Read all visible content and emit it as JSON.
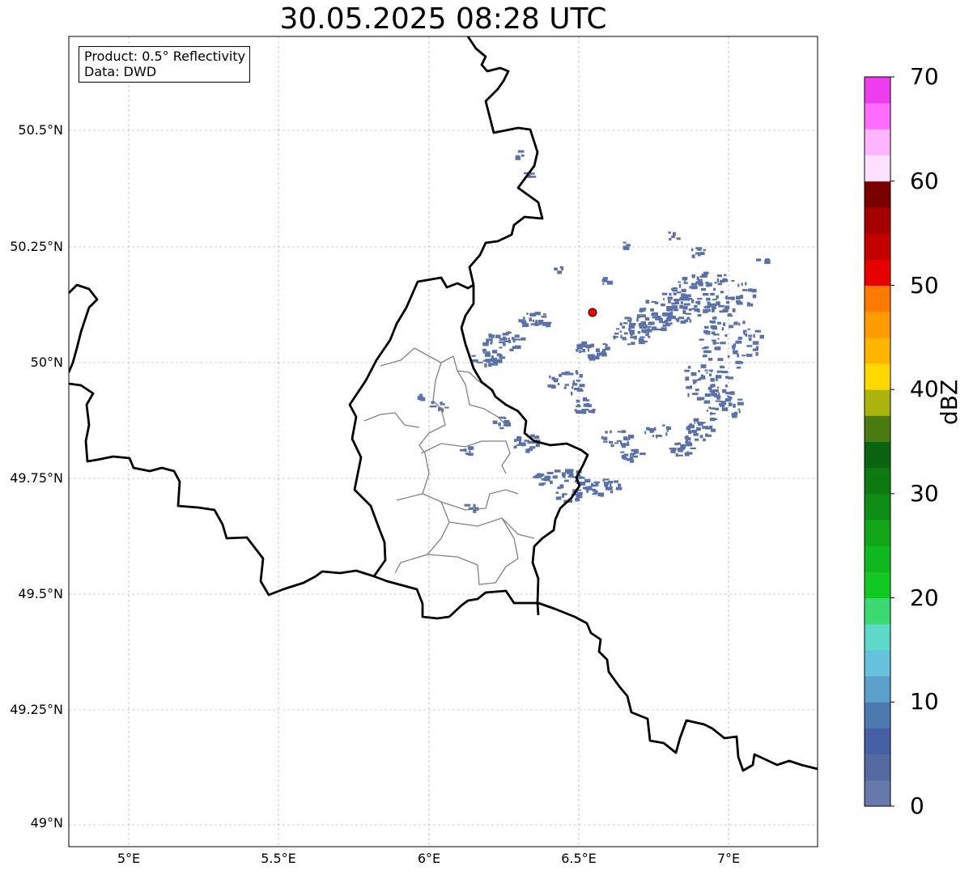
{
  "title": "30.05.2025 08:28 UTC",
  "infobox": {
    "product": "Product: 0.5° Reflectivity",
    "data": "Data: DWD"
  },
  "map": {
    "lon_range": [
      4.8,
      7.3
    ],
    "lat_range": [
      48.95,
      50.7
    ],
    "lat_ticks": [
      "50.5°N",
      "50.25°N",
      "50°N",
      "49.75°N",
      "49.5°N",
      "49.25°N",
      "49°N"
    ],
    "lon_ticks": [
      "5°E",
      "5.5°E",
      "6°E",
      "6.5°E",
      "7°E"
    ],
    "grid": true,
    "radar_site": {
      "lon": 6.55,
      "lat": 50.11,
      "color": "#ff0000"
    },
    "echo_color": "#5a72a8"
  },
  "colorbar": {
    "label": "dBZ",
    "min": 0,
    "max": 70,
    "step": 2.5,
    "tick_labels": [
      "0",
      "10",
      "20",
      "30",
      "40",
      "50",
      "60",
      "70"
    ],
    "colors": [
      "#6677aa",
      "#5469a0",
      "#4560a4",
      "#4c7ab0",
      "#5aa0c8",
      "#66c2dc",
      "#5ed8c8",
      "#3cd872",
      "#12c822",
      "#10b820",
      "#10a618",
      "#0e8c14",
      "#0c7a10",
      "#0a6410",
      "#4a7a10",
      "#aab40a",
      "#ffd800",
      "#ffb400",
      "#ff9a00",
      "#ff7a00",
      "#e60000",
      "#c40000",
      "#a40000",
      "#7a0000",
      "#ffe0ff",
      "#ffb4ff",
      "#ff6cff",
      "#ee3cee"
    ]
  }
}
